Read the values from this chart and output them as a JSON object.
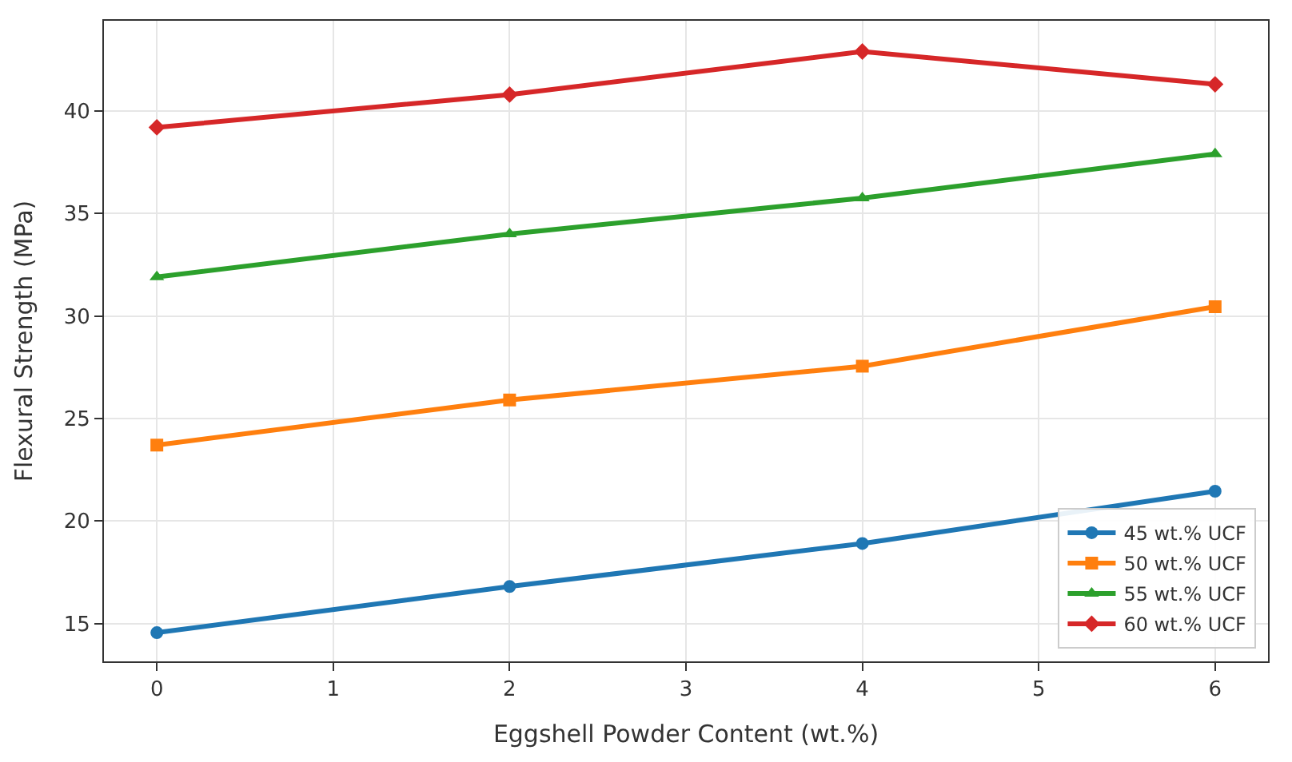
{
  "chart_data": {
    "type": "line",
    "xlabel": "Eggshell Powder Content (wt.%)",
    "ylabel": "Flexural Strength (MPa)",
    "x": [
      0,
      2,
      4,
      6
    ],
    "series": [
      {
        "name": "45 wt.% UCF",
        "color": "#1f77b4",
        "marker": "circle",
        "values": [
          14.55,
          16.8,
          18.9,
          21.45
        ]
      },
      {
        "name": "50 wt.% UCF",
        "color": "#ff7f0e",
        "marker": "square",
        "values": [
          23.7,
          25.9,
          27.55,
          30.45
        ]
      },
      {
        "name": "55 wt.% UCF",
        "color": "#2ca02c",
        "marker": "triangle",
        "values": [
          31.9,
          34.0,
          35.75,
          37.9
        ]
      },
      {
        "name": "60 wt.% UCF",
        "color": "#d62728",
        "marker": "diamond",
        "values": [
          39.2,
          40.8,
          42.9,
          41.3
        ]
      }
    ],
    "xlim": [
      -0.3,
      6.3
    ],
    "xticks": [
      0,
      1,
      2,
      3,
      4,
      5,
      6
    ],
    "ylim": [
      13.15,
      44.4
    ],
    "yticks": [
      15,
      20,
      25,
      30,
      35,
      40
    ],
    "grid": true,
    "legend": "bottom right",
    "line_style": "solid"
  }
}
